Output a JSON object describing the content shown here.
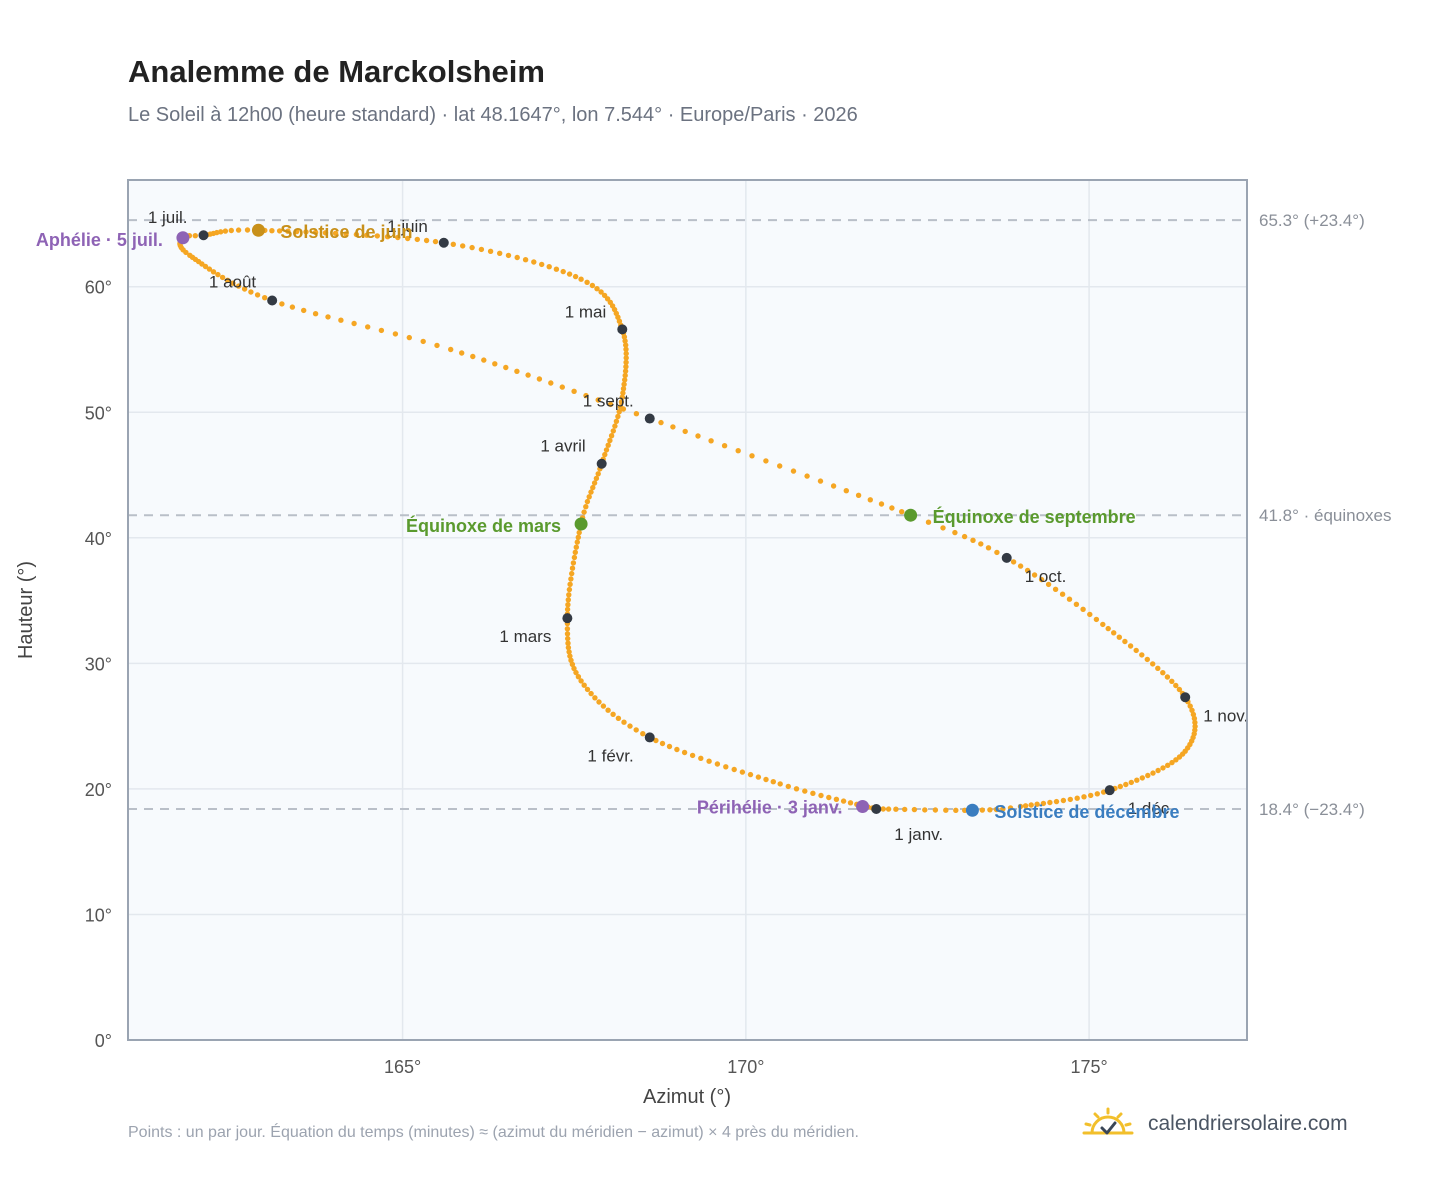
{
  "title": "Analemme de Marckolsheim",
  "subtitle": "Le Soleil à 12h00 (heure standard) · lat 48.1647°, lon 7.544° · Europe/Paris · 2026",
  "footnote": "Points : un par jour. Équation du temps (minutes) ≈ (azimut du méridien − azimut) × 4 près du méridien.",
  "brand": {
    "name": "calendriersolaire.com",
    "icon": "sun-check-icon"
  },
  "colors": {
    "path": "#f5a623",
    "month_marker": "#333a44",
    "solstice_june": "#c8901a",
    "solstice_december": "#3a7dc0",
    "equinox": "#5a9a2e",
    "apsis": "#8e63b5",
    "reference_line": "#b9bfc8",
    "plot_bg": "#f7fafd",
    "grid": "#e3e8ee",
    "frame": "#9aa4b2"
  },
  "chart_data": {
    "type": "scatter",
    "xlabel": "Azimut (°)",
    "ylabel": "Hauteur (°)",
    "xlim": [
      161,
      177.3
    ],
    "ylim": [
      0,
      68.5
    ],
    "x_ticks": [
      {
        "v": 165,
        "label": "165°"
      },
      {
        "v": 170,
        "label": "170°"
      },
      {
        "v": 175,
        "label": "175°"
      }
    ],
    "y_ticks": [
      {
        "v": 0,
        "label": "0°"
      },
      {
        "v": 10,
        "label": "10°"
      },
      {
        "v": 20,
        "label": "20°"
      },
      {
        "v": 30,
        "label": "30°"
      },
      {
        "v": 40,
        "label": "40°"
      },
      {
        "v": 50,
        "label": "50°"
      },
      {
        "v": 60,
        "label": "60°"
      }
    ],
    "grid": true,
    "reference_lines": [
      {
        "y": 65.3,
        "label": "65.3° (+23.4°)"
      },
      {
        "y": 41.8,
        "label": "41.8° · équinoxes"
      },
      {
        "y": 18.4,
        "label": "18.4° (−23.4°)"
      }
    ],
    "series_path": [
      {
        "date": "2026-01-01",
        "az": 171.9,
        "alt": 18.4
      },
      {
        "date": "2026-01-15",
        "az": 170.5,
        "alt": 20.4
      },
      {
        "date": "2026-02-01",
        "az": 168.6,
        "alt": 24.1
      },
      {
        "date": "2026-02-15",
        "az": 167.6,
        "alt": 28.6
      },
      {
        "date": "2026-03-01",
        "az": 167.4,
        "alt": 33.6
      },
      {
        "date": "2026-03-20",
        "az": 167.6,
        "alt": 41.1
      },
      {
        "date": "2026-04-01",
        "az": 167.9,
        "alt": 45.9
      },
      {
        "date": "2026-04-15",
        "az": 168.2,
        "alt": 51.2
      },
      {
        "date": "2026-05-01",
        "az": 168.2,
        "alt": 56.6
      },
      {
        "date": "2026-05-15",
        "az": 167.6,
        "alt": 60.6
      },
      {
        "date": "2026-06-01",
        "az": 165.6,
        "alt": 63.5
      },
      {
        "date": "2026-06-21",
        "az": 162.9,
        "alt": 64.5
      },
      {
        "date": "2026-07-01",
        "az": 162.1,
        "alt": 64.1
      },
      {
        "date": "2026-07-05",
        "az": 161.8,
        "alt": 63.9
      },
      {
        "date": "2026-07-15",
        "az": 161.9,
        "alt": 62.5
      },
      {
        "date": "2026-08-01",
        "az": 163.1,
        "alt": 58.9
      },
      {
        "date": "2026-08-15",
        "az": 165.7,
        "alt": 55.0
      },
      {
        "date": "2026-09-01",
        "az": 168.6,
        "alt": 49.5
      },
      {
        "date": "2026-09-22",
        "az": 172.4,
        "alt": 41.8
      },
      {
        "date": "2026-10-01",
        "az": 173.8,
        "alt": 38.4
      },
      {
        "date": "2026-10-15",
        "az": 175.2,
        "alt": 33.1
      },
      {
        "date": "2026-11-01",
        "az": 176.4,
        "alt": 27.3
      },
      {
        "date": "2026-11-15",
        "az": 176.4,
        "alt": 23.0
      },
      {
        "date": "2026-12-01",
        "az": 175.3,
        "alt": 19.9
      },
      {
        "date": "2026-12-15",
        "az": 174.0,
        "alt": 18.6
      },
      {
        "date": "2026-12-21",
        "az": 173.3,
        "alt": 18.3
      },
      {
        "date": "2026-12-31",
        "az": 172.0,
        "alt": 18.4
      }
    ],
    "month_markers": [
      {
        "label": "1 janv.",
        "az": 171.9,
        "alt": 18.4
      },
      {
        "label": "1 févr.",
        "az": 168.6,
        "alt": 24.1
      },
      {
        "label": "1 mars",
        "az": 167.4,
        "alt": 33.6
      },
      {
        "label": "1 avril",
        "az": 167.9,
        "alt": 45.9
      },
      {
        "label": "1 mai",
        "az": 168.2,
        "alt": 56.6
      },
      {
        "label": "1 juin",
        "az": 165.6,
        "alt": 63.5
      },
      {
        "label": "1 juil.",
        "az": 162.1,
        "alt": 64.1
      },
      {
        "label": "1 août",
        "az": 163.1,
        "alt": 58.9
      },
      {
        "label": "1 sept.",
        "az": 168.6,
        "alt": 49.5
      },
      {
        "label": "1 oct.",
        "az": 173.8,
        "alt": 38.4
      },
      {
        "label": "1 nov.",
        "az": 176.4,
        "alt": 27.3
      },
      {
        "label": "1 déc.",
        "az": 175.3,
        "alt": 19.9
      }
    ],
    "events": [
      {
        "key": "solstice_june",
        "label": "Solstice de juin",
        "az": 162.9,
        "alt": 64.5
      },
      {
        "key": "solstice_december",
        "label": "Solstice de décembre",
        "az": 173.3,
        "alt": 18.3
      },
      {
        "key": "equinox_march",
        "label": "Équinoxe de mars",
        "az": 167.6,
        "alt": 41.1
      },
      {
        "key": "equinox_september",
        "label": "Équinoxe de septembre",
        "az": 172.4,
        "alt": 41.8
      },
      {
        "key": "aphelion",
        "label": "Aphélie · 5 juil.",
        "az": 161.8,
        "alt": 63.9
      },
      {
        "key": "perihelion",
        "label": "Périhélie · 3 janv.",
        "az": 171.7,
        "alt": 18.6
      }
    ]
  }
}
